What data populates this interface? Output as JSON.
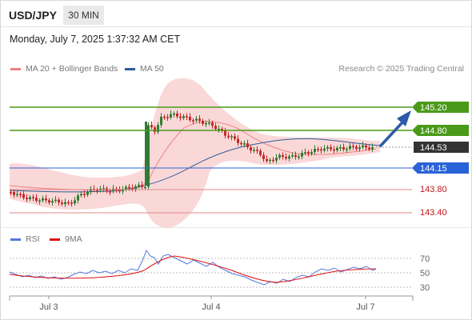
{
  "header": {
    "symbol": "USD/JPY",
    "timeframe": "30 MIN"
  },
  "datetime": "Monday, July 7, 2025 1:37:32 AM CET",
  "legend": [
    {
      "label": "MA 20 + Bollinger Bands",
      "color": "#f08080"
    },
    {
      "label": "MA 50",
      "color": "#2c5a9a"
    }
  ],
  "research": "Research © 2025 Trading Central",
  "levels": [
    {
      "label": "145.20",
      "value": 145.2,
      "type": "resistance",
      "color": "#4a9a1a"
    },
    {
      "label": "144.80",
      "value": 144.8,
      "type": "resistance",
      "color": "#4a9a1a"
    },
    {
      "label": "144.53",
      "value": 144.53,
      "type": "last",
      "color": "#333333"
    },
    {
      "label": "144.15",
      "value": 144.15,
      "type": "pivot",
      "color": "#2a62d8"
    },
    {
      "label": "143.80",
      "value": 143.8,
      "type": "support",
      "color": "#c0151c"
    },
    {
      "label": "143.40",
      "value": 143.4,
      "type": "support",
      "color": "#c0151c"
    }
  ],
  "rsi_legend": [
    {
      "label": "RSI",
      "color": "#5577dd"
    },
    {
      "label": "9MA",
      "color": "#dd1111"
    }
  ],
  "rsi_axis": [
    "70",
    "50",
    "30"
  ],
  "x_axis": [
    "Jul 3",
    "Jul 4",
    "Jul 7"
  ],
  "colors": {
    "up": "#2e7d32",
    "down": "#c62828",
    "arrow": "#2e5aa8",
    "band": "#f6b8b8"
  }
}
